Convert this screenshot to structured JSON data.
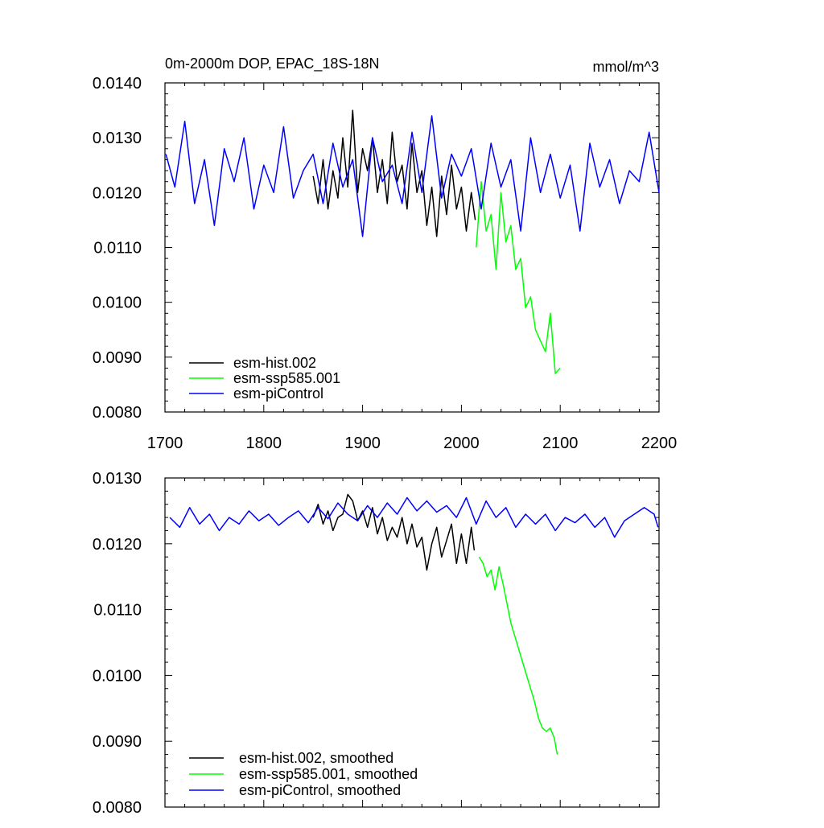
{
  "chart_data": [
    {
      "type": "line",
      "title": "0m-2000m DOP, EPAC_18S-18N",
      "units": "mmol/m^3",
      "xlim": [
        1700,
        2200
      ],
      "ylim": [
        0.008,
        0.014
      ],
      "x_ticks": [
        "1700",
        "1800",
        "1900",
        "2000",
        "2100",
        "2200"
      ],
      "y_ticks": [
        "0.0080",
        "0.0090",
        "0.0100",
        "0.0110",
        "0.0120",
        "0.0130",
        "0.0140"
      ],
      "legend_position": "bottom-left",
      "series": [
        {
          "name": "esm-hist.002",
          "color": "#000000",
          "x": [
            1850,
            1855,
            1860,
            1865,
            1870,
            1875,
            1880,
            1885,
            1890,
            1895,
            1900,
            1905,
            1910,
            1915,
            1920,
            1925,
            1930,
            1935,
            1940,
            1945,
            1950,
            1955,
            1960,
            1965,
            1970,
            1975,
            1980,
            1985,
            1990,
            1995,
            2000,
            2005,
            2010,
            2014
          ],
          "y": [
            0.0123,
            0.0118,
            0.0126,
            0.0117,
            0.0124,
            0.0119,
            0.013,
            0.0121,
            0.0135,
            0.012,
            0.0128,
            0.0124,
            0.013,
            0.012,
            0.0126,
            0.0118,
            0.0131,
            0.0122,
            0.0125,
            0.0117,
            0.0129,
            0.012,
            0.0124,
            0.0114,
            0.0121,
            0.0112,
            0.0123,
            0.0116,
            0.0125,
            0.0117,
            0.0121,
            0.0113,
            0.012,
            0.0115
          ]
        },
        {
          "name": "esm-ssp585.001",
          "color": "#00ff00",
          "x": [
            2015,
            2020,
            2025,
            2030,
            2035,
            2040,
            2045,
            2050,
            2055,
            2060,
            2065,
            2070,
            2075,
            2080,
            2085,
            2090,
            2095,
            2100
          ],
          "y": [
            0.011,
            0.0122,
            0.0113,
            0.0116,
            0.0106,
            0.012,
            0.0111,
            0.0114,
            0.0106,
            0.0108,
            0.0099,
            0.0101,
            0.0095,
            0.0093,
            0.0091,
            0.0098,
            0.0087,
            0.0088
          ]
        },
        {
          "name": "esm-piControl",
          "color": "#0000ff",
          "x": [
            1701,
            1710,
            1720,
            1730,
            1740,
            1750,
            1760,
            1770,
            1780,
            1790,
            1800,
            1810,
            1820,
            1830,
            1840,
            1850,
            1860,
            1870,
            1880,
            1890,
            1900,
            1910,
            1920,
            1930,
            1940,
            1950,
            1960,
            1970,
            1980,
            1990,
            2000,
            2010,
            2020,
            2030,
            2040,
            2050,
            2060,
            2070,
            2080,
            2090,
            2100,
            2110,
            2120,
            2130,
            2140,
            2150,
            2160,
            2170,
            2180,
            2190,
            2200
          ],
          "y": [
            0.0127,
            0.0121,
            0.0133,
            0.0118,
            0.0126,
            0.0114,
            0.0128,
            0.0122,
            0.013,
            0.0117,
            0.0125,
            0.012,
            0.0132,
            0.0119,
            0.0124,
            0.0127,
            0.0118,
            0.0129,
            0.0121,
            0.0126,
            0.0112,
            0.013,
            0.0122,
            0.0125,
            0.0118,
            0.0131,
            0.012,
            0.0134,
            0.0119,
            0.0127,
            0.0123,
            0.0128,
            0.0117,
            0.0129,
            0.0121,
            0.0126,
            0.0113,
            0.013,
            0.012,
            0.0127,
            0.0119,
            0.0125,
            0.0113,
            0.0129,
            0.0121,
            0.0126,
            0.0118,
            0.0124,
            0.0122,
            0.0131,
            0.012
          ]
        }
      ]
    },
    {
      "type": "line",
      "xlim": [
        1700,
        2200
      ],
      "ylim": [
        0.008,
        0.013
      ],
      "y_ticks": [
        "0.0080",
        "0.0090",
        "0.0100",
        "0.0110",
        "0.0120",
        "0.0130"
      ],
      "legend_position": "bottom-left",
      "series": [
        {
          "name": "esm-hist.002, smoothed",
          "color": "#000000",
          "x": [
            1850,
            1855,
            1860,
            1865,
            1870,
            1875,
            1880,
            1885,
            1890,
            1895,
            1900,
            1905,
            1910,
            1915,
            1920,
            1925,
            1930,
            1935,
            1940,
            1945,
            1950,
            1955,
            1960,
            1965,
            1970,
            1975,
            1980,
            1985,
            1990,
            1995,
            2000,
            2005,
            2010,
            2013
          ],
          "y": [
            0.0124,
            0.0126,
            0.0123,
            0.0125,
            0.0122,
            0.0124,
            0.01245,
            0.01275,
            0.01265,
            0.01235,
            0.0125,
            0.01225,
            0.01255,
            0.01215,
            0.0124,
            0.01205,
            0.01225,
            0.0121,
            0.0124,
            0.012,
            0.0123,
            0.01195,
            0.0121,
            0.0116,
            0.012,
            0.01225,
            0.0118,
            0.01205,
            0.0123,
            0.0117,
            0.01215,
            0.0117,
            0.01225,
            0.0119
          ]
        },
        {
          "name": "esm-ssp585.001, smoothed",
          "color": "#00ff00",
          "x": [
            2018,
            2022,
            2026,
            2030,
            2034,
            2038,
            2042,
            2046,
            2050,
            2054,
            2058,
            2062,
            2066,
            2070,
            2074,
            2078,
            2082,
            2086,
            2090,
            2094,
            2097
          ],
          "y": [
            0.0118,
            0.0117,
            0.0115,
            0.0116,
            0.0113,
            0.01165,
            0.0114,
            0.0111,
            0.0108,
            0.0106,
            0.0104,
            0.0102,
            0.01,
            0.0098,
            0.0096,
            0.00935,
            0.0092,
            0.00915,
            0.0092,
            0.00905,
            0.0088
          ]
        },
        {
          "name": "esm-piControl, smoothed",
          "color": "#0000ff",
          "x": [
            1705,
            1715,
            1725,
            1735,
            1745,
            1755,
            1765,
            1775,
            1785,
            1795,
            1805,
            1815,
            1825,
            1835,
            1845,
            1855,
            1865,
            1875,
            1885,
            1895,
            1905,
            1915,
            1925,
            1935,
            1945,
            1955,
            1965,
            1975,
            1985,
            1995,
            2005,
            2015,
            2025,
            2035,
            2045,
            2055,
            2065,
            2075,
            2085,
            2095,
            2105,
            2115,
            2125,
            2135,
            2145,
            2155,
            2165,
            2175,
            2185,
            2195,
            2199
          ],
          "y": [
            0.0124,
            0.01225,
            0.01255,
            0.0123,
            0.01245,
            0.0122,
            0.0124,
            0.0123,
            0.0125,
            0.01235,
            0.01245,
            0.01228,
            0.0124,
            0.0125,
            0.01232,
            0.01255,
            0.01238,
            0.01262,
            0.01245,
            0.01235,
            0.01258,
            0.0124,
            0.01262,
            0.01245,
            0.0127,
            0.0125,
            0.01265,
            0.01248,
            0.01258,
            0.0124,
            0.0127,
            0.0123,
            0.01265,
            0.0124,
            0.01255,
            0.01225,
            0.01245,
            0.0123,
            0.01245,
            0.0122,
            0.0124,
            0.01232,
            0.01245,
            0.01225,
            0.0124,
            0.0121,
            0.01235,
            0.01245,
            0.01255,
            0.01245,
            0.01225
          ]
        }
      ]
    }
  ]
}
